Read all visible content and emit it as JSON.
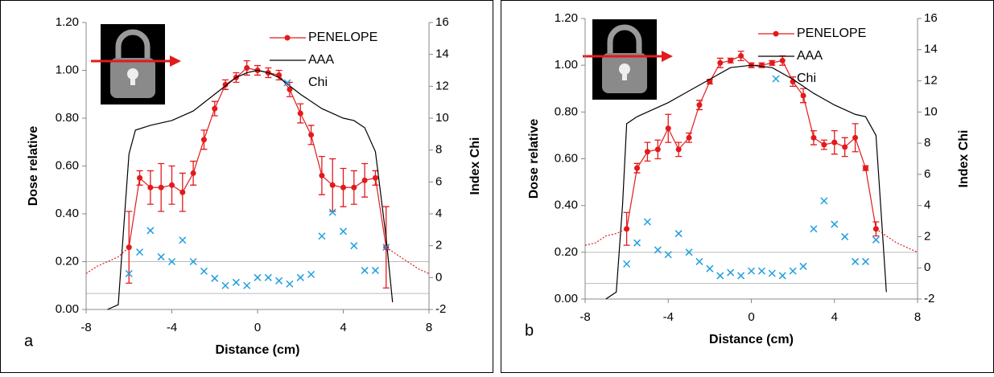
{
  "chart_data": [
    {
      "type": "line",
      "label": "a",
      "xlabel": "Distance (cm)",
      "ylabel": "Dose relative",
      "y2label": "Index Chi",
      "xlim": [
        -8,
        8
      ],
      "xticks": [
        -8,
        -4,
        0,
        4,
        8
      ],
      "ylim": [
        0,
        1.2
      ],
      "yticks": [
        {
          "value": 0,
          "label": "0.00"
        },
        {
          "value": 0.2,
          "label": "0.20"
        },
        {
          "value": 0.4,
          "label": "0.40"
        },
        {
          "value": 0.6,
          "label": "0.60"
        },
        {
          "value": 0.8,
          "label": "0.80"
        },
        {
          "value": 1,
          "label": "1.00"
        },
        {
          "value": 1.2,
          "label": "1.20"
        }
      ],
      "y2lim": [
        -2,
        16
      ],
      "y2ticks": [
        -2,
        0,
        2,
        4,
        6,
        8,
        10,
        12,
        14,
        16
      ],
      "y2_reference_lines": [
        1,
        -1
      ],
      "legend": "top-right",
      "series": [
        {
          "name": "PENELOPE",
          "color": "#e31a1c",
          "style": "line-markers",
          "x": [
            -6,
            -5.5,
            -5,
            -4.5,
            -4,
            -3.5,
            -3,
            -2.5,
            -2,
            -1.5,
            -1,
            -0.5,
            0,
            0.5,
            1,
            1.5,
            2,
            2.5,
            3,
            3.5,
            4,
            4.5,
            5,
            5.5,
            6
          ],
          "values": [
            0.26,
            0.55,
            0.51,
            0.51,
            0.52,
            0.49,
            0.57,
            0.71,
            0.84,
            0.94,
            0.97,
            1.01,
            1.0,
            0.99,
            0.98,
            0.92,
            0.82,
            0.73,
            0.56,
            0.52,
            0.51,
            0.51,
            0.54,
            0.55,
            0.26
          ],
          "errors": [
            0.15,
            0.03,
            0.07,
            0.1,
            0.08,
            0.08,
            0.05,
            0.04,
            0.03,
            0.02,
            0.02,
            0.03,
            0.02,
            0.02,
            0.02,
            0.03,
            0.04,
            0.04,
            0.08,
            0.11,
            0.08,
            0.07,
            0.07,
            0.03,
            0.17
          ]
        },
        {
          "name": "AAA",
          "color": "#000000",
          "style": "line",
          "x": [
            -7,
            -6.5,
            -6.2,
            -6,
            -5.7,
            -5,
            -4.5,
            -4,
            -3,
            -2,
            -1,
            -0.5,
            0,
            0.5,
            1,
            2,
            3,
            4,
            4.5,
            5,
            5.5,
            6,
            6.3
          ],
          "values": [
            0,
            0.02,
            0.4,
            0.65,
            0.75,
            0.77,
            0.78,
            0.79,
            0.83,
            0.9,
            0.97,
            0.99,
            1.0,
            0.99,
            0.97,
            0.9,
            0.84,
            0.8,
            0.79,
            0.76,
            0.66,
            0.3,
            0.03
          ]
        },
        {
          "name": "Chi",
          "color": "#1f9fe0",
          "style": "markers",
          "axis": "y2",
          "x": [
            -6,
            -5.5,
            -5,
            -4.5,
            -4,
            -3.5,
            -3,
            -2.5,
            -2,
            -1.5,
            -1,
            -0.5,
            0,
            0.5,
            1,
            1.5,
            2,
            2.5,
            3,
            3.5,
            4,
            4.5,
            5,
            5.5,
            6
          ],
          "values": [
            0.25,
            1.6,
            2.95,
            1.3,
            1.0,
            2.35,
            1.0,
            0.4,
            -0.05,
            -0.5,
            -0.3,
            -0.5,
            0,
            0,
            -0.2,
            -0.4,
            0,
            0.2,
            2.6,
            4.1,
            2.9,
            2.0,
            0.45,
            0.45,
            1.9
          ]
        },
        {
          "color": "#e31a1c",
          "style": "dotted",
          "x": [
            -8,
            -7.5,
            -7,
            -6.5,
            -6,
            0,
            6,
            6.5,
            7,
            7.5,
            8
          ],
          "values": [
            0.15,
            0.18,
            0.2,
            0.22,
            0.26,
            null,
            0.26,
            0.23,
            0.2,
            0.17,
            0.15
          ]
        }
      ]
    },
    {
      "type": "line",
      "label": "b",
      "xlabel": "Distance (cm)",
      "ylabel": "Dose relative",
      "y2label": "Index Chi",
      "xlim": [
        -8,
        8
      ],
      "xticks": [
        -8,
        -4,
        0,
        4,
        8
      ],
      "ylim": [
        0,
        1.2
      ],
      "yticks": [
        {
          "value": 0,
          "label": "0.00"
        },
        {
          "value": 0.2,
          "label": "0.20"
        },
        {
          "value": 0.4,
          "label": "0.40"
        },
        {
          "value": 0.6,
          "label": "0.60"
        },
        {
          "value": 0.8,
          "label": "0.80"
        },
        {
          "value": 1,
          "label": "1.00"
        },
        {
          "value": 1.2,
          "label": "1.20"
        }
      ],
      "y2lim": [
        -2,
        16
      ],
      "y2ticks": [
        -2,
        0,
        2,
        4,
        6,
        8,
        10,
        12,
        14,
        16
      ],
      "y2_reference_lines": [
        1,
        -1
      ],
      "legend": "top-right",
      "series": [
        {
          "name": "PENELOPE",
          "color": "#e31a1c",
          "style": "line-markers",
          "x": [
            -6,
            -5.5,
            -5,
            -4.5,
            -4,
            -3.5,
            -3,
            -2.5,
            -2,
            -1.5,
            -1,
            -0.5,
            0,
            0.5,
            1,
            1.5,
            2,
            2.5,
            3,
            3.5,
            4,
            4.5,
            5,
            5.5,
            6
          ],
          "values": [
            0.3,
            0.56,
            0.63,
            0.64,
            0.73,
            0.64,
            0.69,
            0.83,
            0.93,
            1.01,
            1.02,
            1.04,
            1.0,
            1.0,
            1.01,
            1.02,
            0.93,
            0.87,
            0.69,
            0.66,
            0.67,
            0.65,
            0.69,
            0.56,
            0.3
          ],
          "errors": [
            0.07,
            0.02,
            0.04,
            0.04,
            0.06,
            0.03,
            0.02,
            0.02,
            0.01,
            0.02,
            0.01,
            0.02,
            0.01,
            0.01,
            0.01,
            0.02,
            0.02,
            0.03,
            0.03,
            0.02,
            0.05,
            0.04,
            0.06,
            0.01,
            0.03
          ]
        },
        {
          "name": "AAA",
          "color": "#000000",
          "style": "line",
          "x": [
            -7,
            -6.5,
            -6.2,
            -6,
            -5.5,
            -5,
            -4,
            -3,
            -2,
            -1,
            0,
            1,
            2,
            3,
            4,
            5,
            5.5,
            6,
            6.3,
            6.5
          ],
          "values": [
            0,
            0.03,
            0.4,
            0.75,
            0.78,
            0.8,
            0.84,
            0.89,
            0.94,
            0.99,
            1.0,
            0.99,
            0.94,
            0.88,
            0.83,
            0.79,
            0.78,
            0.7,
            0.3,
            0.03
          ]
        },
        {
          "name": "Chi",
          "color": "#1f9fe0",
          "style": "markers",
          "axis": "y2",
          "x": [
            -6,
            -5.5,
            -5,
            -4.5,
            -4,
            -3.5,
            -3,
            -2.5,
            -2,
            -1.5,
            -1,
            -0.5,
            0,
            0.5,
            1,
            1.5,
            2,
            2.5,
            3,
            3.5,
            4,
            4.5,
            5,
            5.5,
            6
          ],
          "values": [
            0.25,
            1.6,
            2.95,
            1.15,
            0.85,
            2.2,
            1.0,
            0.4,
            -0.05,
            -0.5,
            -0.3,
            -0.5,
            -0.2,
            -0.2,
            -0.35,
            -0.5,
            -0.2,
            0.1,
            2.5,
            4.3,
            2.8,
            2.0,
            0.4,
            0.4,
            1.8
          ]
        },
        {
          "color": "#e31a1c",
          "style": "dotted",
          "x": [
            -8,
            -7.5,
            -7,
            -6.5,
            -6,
            0,
            6,
            6.5,
            7,
            7.5,
            8
          ],
          "values": [
            0.23,
            0.24,
            0.27,
            0.28,
            0.3,
            null,
            0.3,
            0.27,
            0.24,
            0.22,
            0.2
          ]
        }
      ]
    }
  ]
}
